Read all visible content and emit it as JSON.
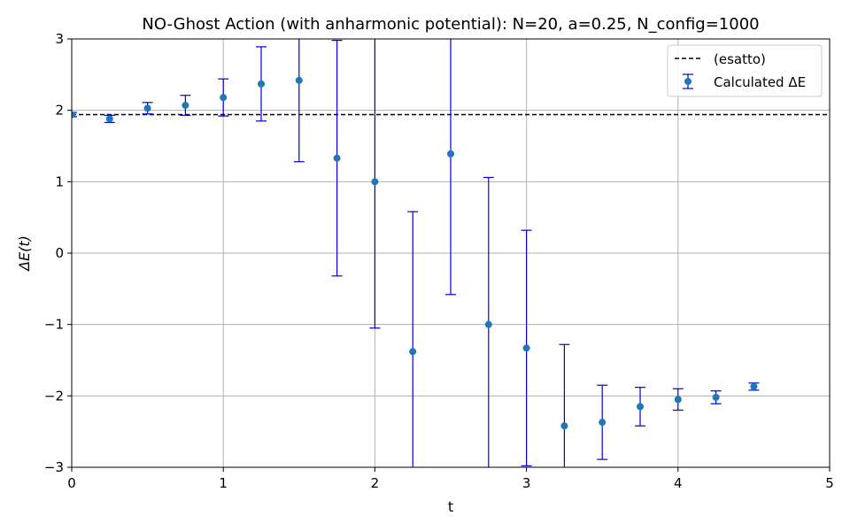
{
  "chart_data": {
    "type": "scatter",
    "title": "NO-Ghost Action (with anharmonic potential): N=20, a=0.25, N_config=1000",
    "xlabel": "t",
    "ylabel": "ΔE(t)",
    "xlim": [
      0,
      5
    ],
    "ylim": [
      -3,
      3
    ],
    "xticks": [
      "0",
      "1",
      "2",
      "3",
      "4",
      "5"
    ],
    "yticks": [
      "−3",
      "−2",
      "−1",
      "0",
      "1",
      "2",
      "3"
    ],
    "grid": true,
    "legend_position": "top-right",
    "reference_line": {
      "name": "(esatto)",
      "y": 1.94,
      "style": "dashed",
      "color": "#000000"
    },
    "series": [
      {
        "name": "Calculated ΔE",
        "marker_color": "#1f77b4",
        "errorbar_color": "#0000dd",
        "x": [
          0.0,
          0.25,
          0.5,
          0.75,
          1.0,
          1.25,
          1.5,
          1.75,
          2.0,
          2.25,
          2.5,
          2.75,
          3.0,
          3.25,
          3.5,
          3.75,
          4.0,
          4.25,
          4.5
        ],
        "y": [
          1.94,
          1.88,
          2.03,
          2.07,
          2.18,
          2.37,
          2.42,
          1.33,
          1.0,
          -1.38,
          1.39,
          -1.0,
          -1.33,
          -2.42,
          -2.37,
          -2.15,
          -2.05,
          -2.02,
          -1.87
        ],
        "err": [
          0.03,
          0.05,
          0.08,
          0.14,
          0.26,
          0.52,
          1.14,
          1.65,
          2.05,
          1.96,
          1.97,
          2.06,
          1.65,
          1.14,
          0.52,
          0.27,
          0.15,
          0.09,
          0.05
        ]
      }
    ]
  }
}
